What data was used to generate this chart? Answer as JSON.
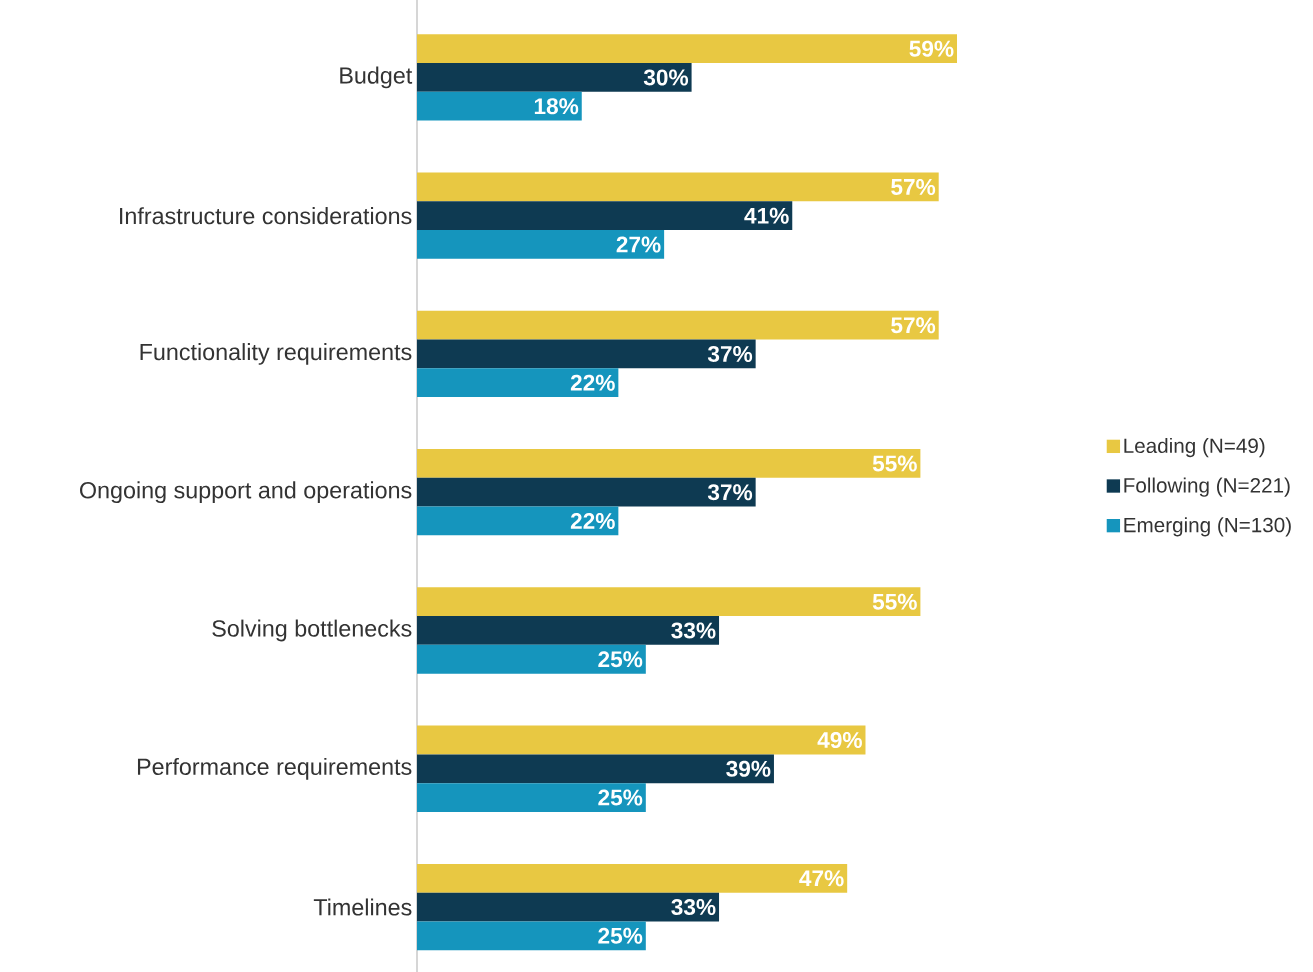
{
  "chart_data": {
    "type": "bar",
    "orientation": "horizontal",
    "categories": [
      "Budget",
      "Infrastructure considerations",
      "Functionality requirements",
      "Ongoing support and operations",
      "Solving bottlenecks",
      "Performance requirements",
      "Timelines"
    ],
    "series": [
      {
        "name": "Leading (N=49)",
        "color": "#e8c842",
        "values": [
          59,
          57,
          57,
          55,
          55,
          49,
          47
        ],
        "value_labels": [
          "59%",
          "57%",
          "57%",
          "55%",
          "55%",
          "49%",
          "47%"
        ]
      },
      {
        "name": "Following (N=221)",
        "color": "#0e3a52",
        "values": [
          30,
          41,
          37,
          37,
          33,
          39,
          33
        ],
        "value_labels": [
          "30%",
          "41%",
          "37%",
          "37%",
          "33%",
          "39%",
          "33%"
        ]
      },
      {
        "name": "Emerging (N=130)",
        "color": "#1595bd",
        "values": [
          18,
          27,
          22,
          22,
          25,
          25,
          25
        ],
        "value_labels": [
          "18%",
          "27%",
          "22%",
          "22%",
          "25%",
          "25%",
          "25%"
        ]
      }
    ],
    "legend": "right"
  }
}
